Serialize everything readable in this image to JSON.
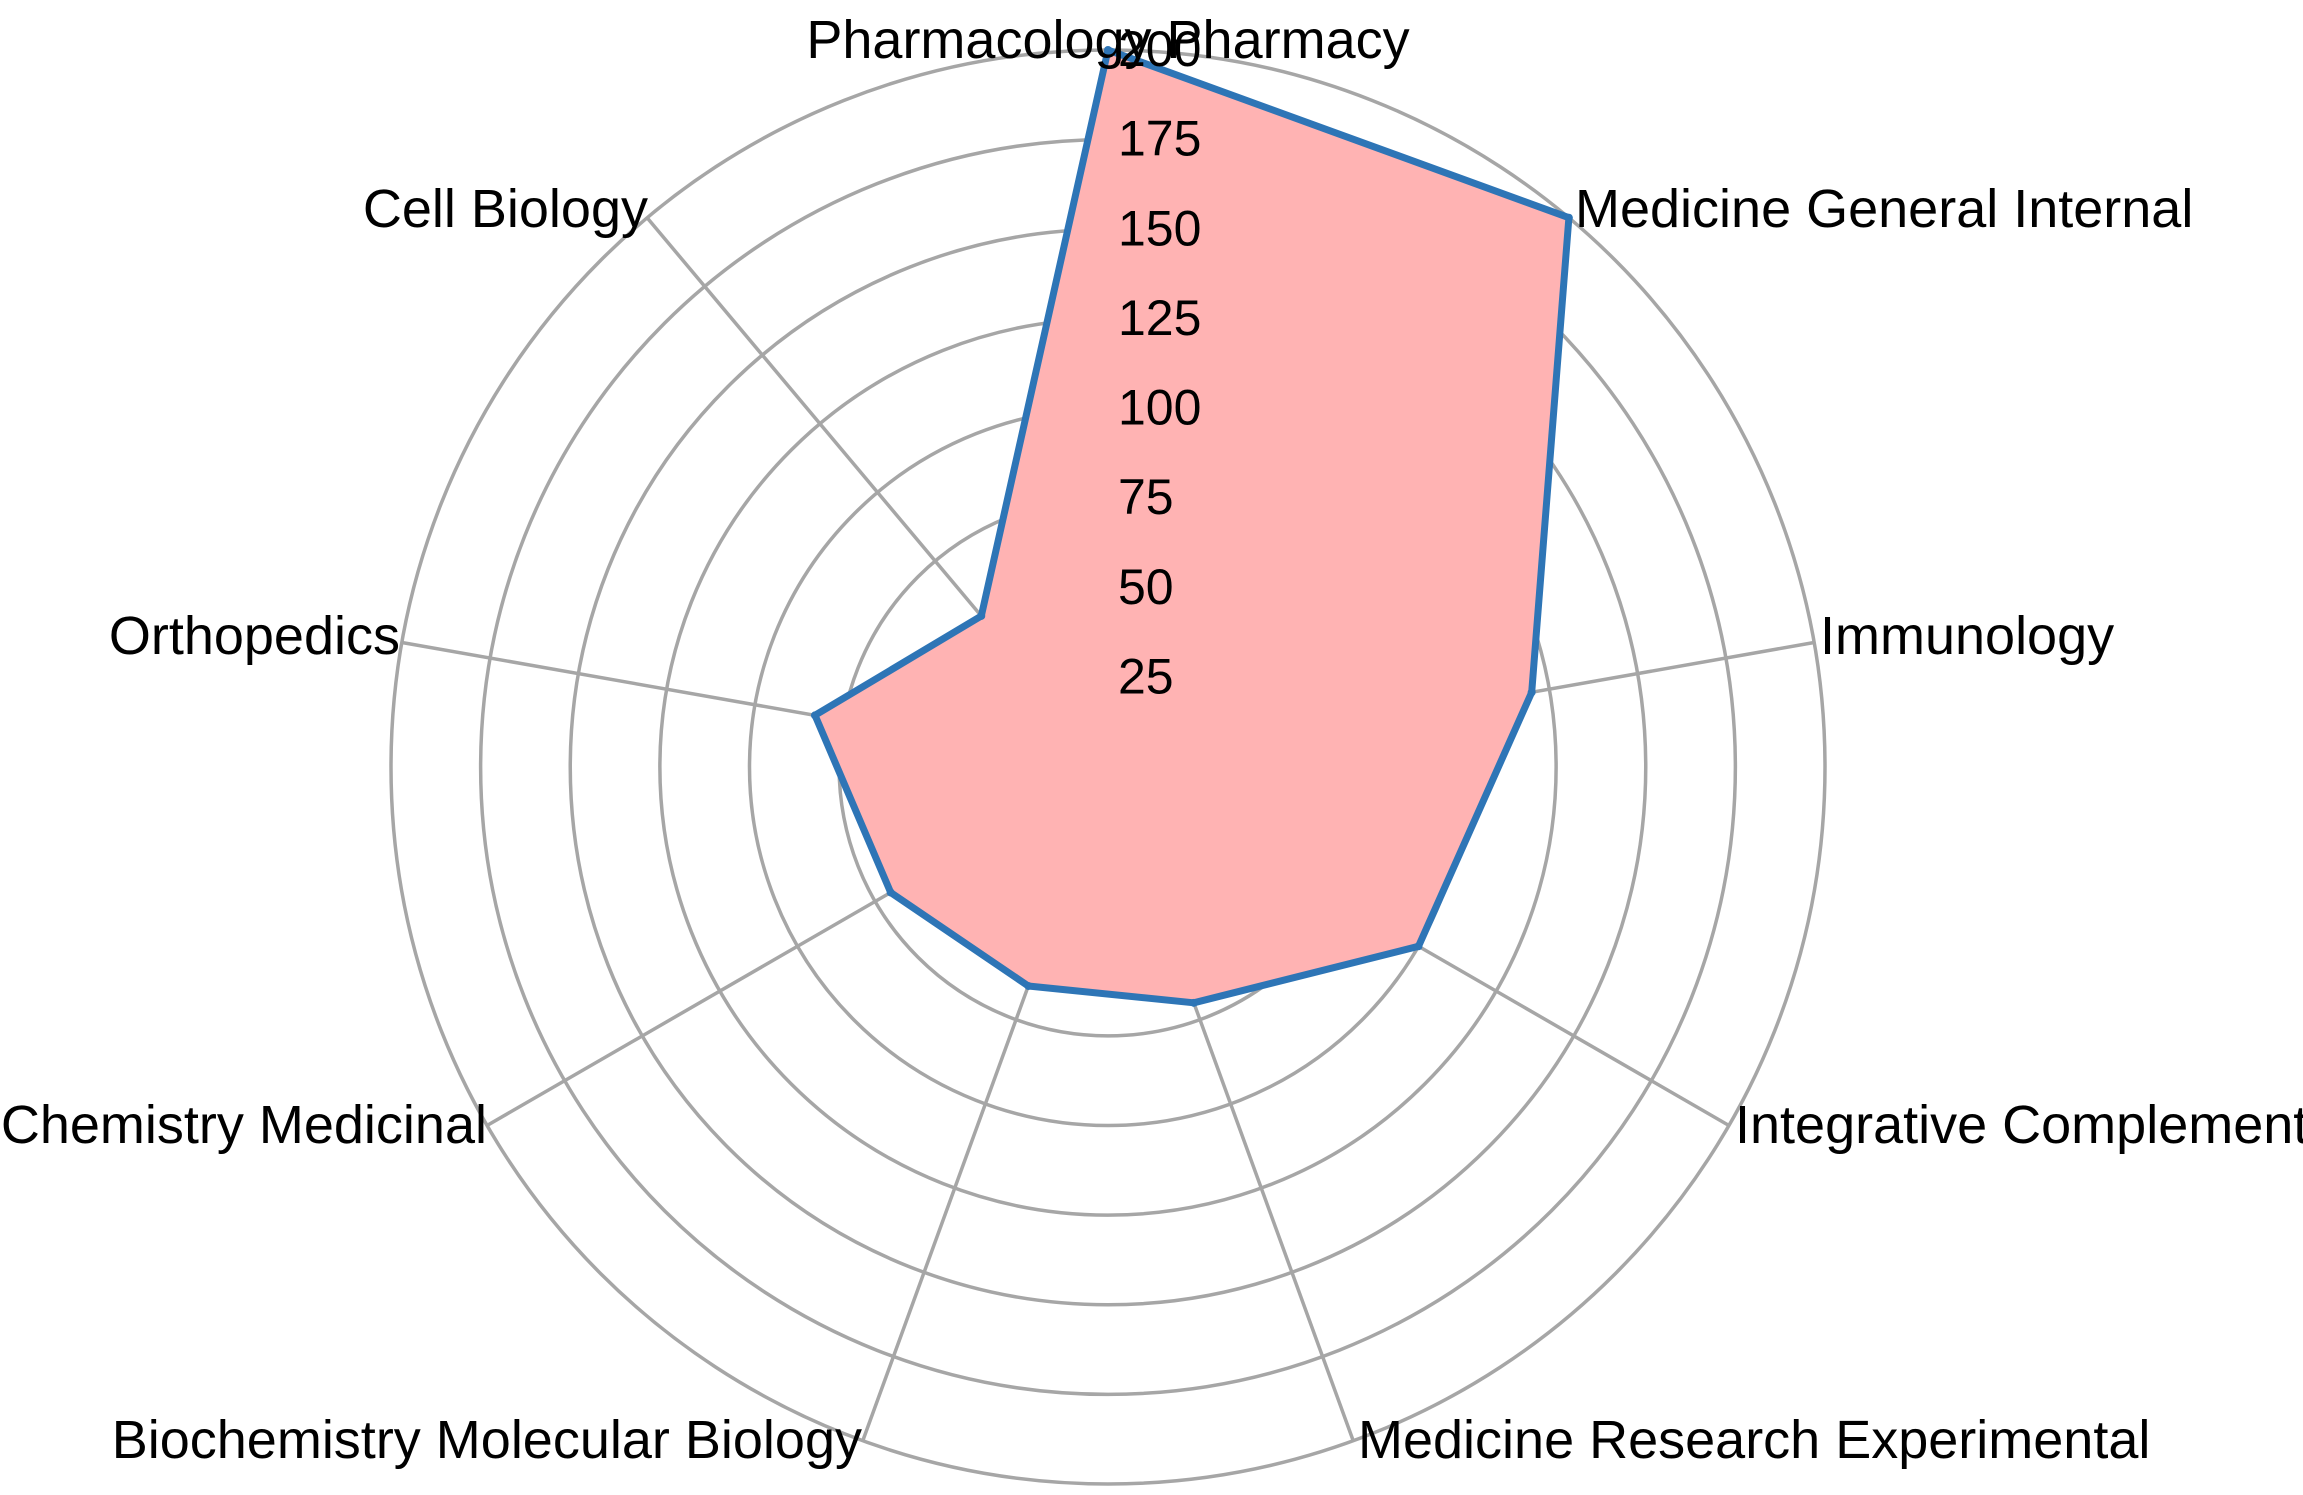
{
  "chart_data": {
    "type": "radar",
    "categories": [
      "Pharmacology Pharmacy",
      "Medicine General Internal",
      "Immunology",
      "Integrative Complement",
      "Medicine Research Experimental",
      "Biochemistry Molecular Biology",
      "Chemistry Medicinal",
      "Orthopedics",
      "Cell Biology"
    ],
    "series": [
      {
        "values": [
          200,
          200,
          120,
          100,
          70,
          65,
          70,
          83,
          55
        ]
      }
    ],
    "radial_ticks": [
      "25",
      "50",
      "75",
      "100",
      "125",
      "150",
      "175",
      "200"
    ],
    "rlim": [
      0,
      200
    ],
    "grid": true,
    "colors": {
      "fill": "#ffb3b3",
      "line": "#2e75b6",
      "grid": "#a6a6a6"
    }
  }
}
